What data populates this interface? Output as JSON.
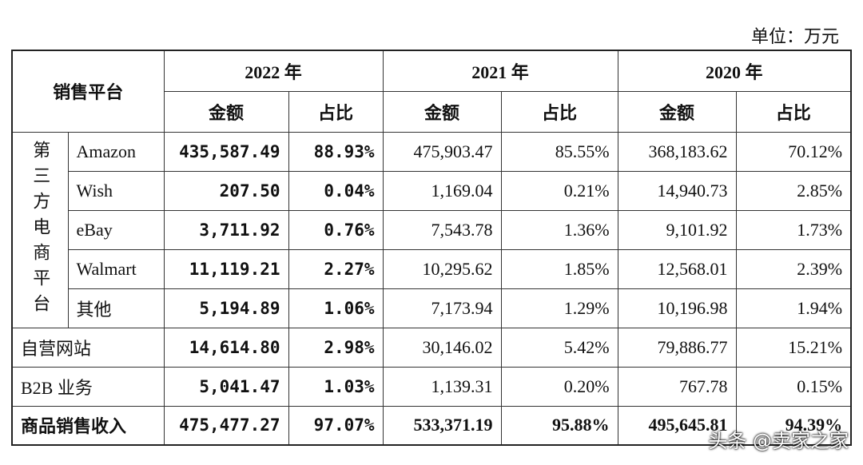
{
  "unit": "单位：万元",
  "header": {
    "platform": "销售平台",
    "years": [
      "2022 年",
      "2021 年",
      "2020 年"
    ],
    "sub": [
      "金额",
      "占比",
      "金额",
      "占比",
      "金额",
      "占比"
    ]
  },
  "group": "第三方电商平台",
  "group_rows": [
    {
      "name": "Amazon",
      "cells": [
        "435,587.49",
        "88.93%",
        "475,903.47",
        "85.55%",
        "368,183.62",
        "70.12%"
      ]
    },
    {
      "name": "Wish",
      "cells": [
        "207.50",
        "0.04%",
        "1,169.04",
        "0.21%",
        "14,940.73",
        "2.85%"
      ]
    },
    {
      "name": "eBay",
      "cells": [
        "3,711.92",
        "0.76%",
        "7,543.78",
        "1.36%",
        "9,101.92",
        "1.73%"
      ]
    },
    {
      "name": "Walmart",
      "cells": [
        "11,119.21",
        "2.27%",
        "10,295.62",
        "1.85%",
        "12,568.01",
        "2.39%"
      ]
    },
    {
      "name": "其他",
      "cells": [
        "5,194.89",
        "1.06%",
        "7,173.94",
        "1.29%",
        "10,196.98",
        "1.94%"
      ]
    }
  ],
  "rows": [
    {
      "name": "自营网站",
      "cells": [
        "14,614.80",
        "2.98%",
        "30,146.02",
        "5.42%",
        "79,886.77",
        "15.21%"
      ]
    },
    {
      "name": "B2B 业务",
      "cells": [
        "5,041.47",
        "1.03%",
        "1,139.31",
        "0.20%",
        "767.78",
        "0.15%"
      ]
    },
    {
      "name": "商品销售收入",
      "cells": [
        "475,477.27",
        "97.07%",
        "533,371.19",
        "95.88%",
        "495,645.81",
        "94.39%"
      ]
    }
  ],
  "watermark": "头条 @卖家之家"
}
